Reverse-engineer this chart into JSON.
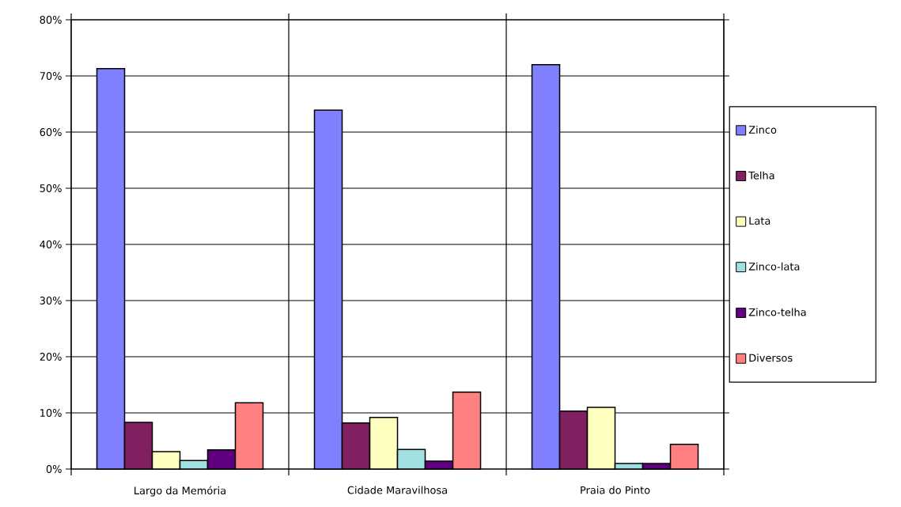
{
  "chart_data": {
    "type": "bar",
    "categories": [
      "Largo da Memória",
      "Cidade Maravilhosa",
      "Praia do Pinto"
    ],
    "series": [
      {
        "name": "Zinco",
        "color": "#8080ff",
        "values": [
          71.3,
          63.9,
          72.0
        ]
      },
      {
        "name": "Telha",
        "color": "#802060",
        "values": [
          8.3,
          8.2,
          10.3
        ]
      },
      {
        "name": "Lata",
        "color": "#ffffc0",
        "values": [
          3.1,
          9.2,
          11.0
        ]
      },
      {
        "name": "Zinco-lata",
        "color": "#a0e0e0",
        "values": [
          1.5,
          3.5,
          1.0
        ]
      },
      {
        "name": "Zinco-telha",
        "color": "#600080",
        "values": [
          3.4,
          1.4,
          1.0
        ]
      },
      {
        "name": "Diversos",
        "color": "#ff8080",
        "values": [
          11.8,
          13.7,
          4.4
        ]
      }
    ],
    "ylim": [
      0,
      80
    ],
    "yticks": [
      {
        "value": 0,
        "label": "0%"
      },
      {
        "value": 10,
        "label": "10%"
      },
      {
        "value": 20,
        "label": "20%"
      },
      {
        "value": 30,
        "label": "30%"
      },
      {
        "value": 40,
        "label": "40%"
      },
      {
        "value": 50,
        "label": "50%"
      },
      {
        "value": 60,
        "label": "60%"
      },
      {
        "value": 70,
        "label": "70%"
      },
      {
        "value": 80,
        "label": "80%"
      }
    ],
    "grid": true,
    "legend": "right"
  }
}
